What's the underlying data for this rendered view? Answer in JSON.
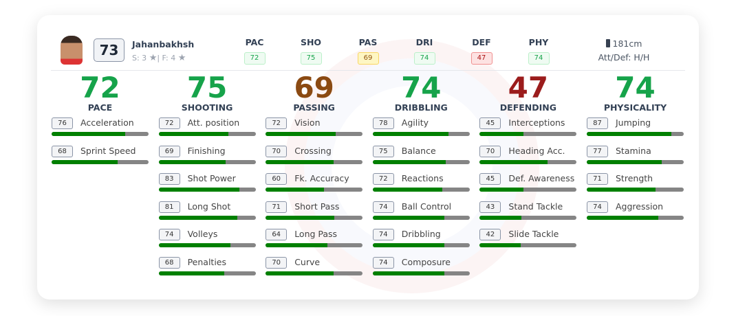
{
  "player": {
    "name": "Jahanbakhsh",
    "overall": "73",
    "skills": "S: 3",
    "weak_foot": "F: 4",
    "height": "181cm",
    "work_rate": "Att/Def: H/H"
  },
  "header_stats": [
    {
      "label": "PAC",
      "value": "72",
      "tone": "g"
    },
    {
      "label": "SHO",
      "value": "75",
      "tone": "g"
    },
    {
      "label": "PAS",
      "value": "69",
      "tone": "y"
    },
    {
      "label": "DRI",
      "value": "74",
      "tone": "g"
    },
    {
      "label": "DEF",
      "value": "47",
      "tone": "r"
    },
    {
      "label": "PHY",
      "value": "74",
      "tone": "g"
    }
  ],
  "colors": {
    "green": "#16a34a",
    "brown": "#8b4a12",
    "red": "#9b1c1c",
    "bar_fill": "#008000",
    "bar_track": "#858585"
  },
  "categories": [
    {
      "name": "PACE",
      "value": "72",
      "color": "#16a34a",
      "attrs": [
        {
          "name": "Acceleration",
          "value": 76
        },
        {
          "name": "Sprint Speed",
          "value": 68
        }
      ]
    },
    {
      "name": "SHOOTING",
      "value": "75",
      "color": "#16a34a",
      "attrs": [
        {
          "name": "Att. position",
          "value": 72
        },
        {
          "name": "Finishing",
          "value": 69
        },
        {
          "name": "Shot Power",
          "value": 83
        },
        {
          "name": "Long Shot",
          "value": 81
        },
        {
          "name": "Volleys",
          "value": 74
        },
        {
          "name": "Penalties",
          "value": 68
        }
      ]
    },
    {
      "name": "PASSING",
      "value": "69",
      "color": "#8b4a12",
      "attrs": [
        {
          "name": "Vision",
          "value": 72
        },
        {
          "name": "Crossing",
          "value": 70
        },
        {
          "name": "Fk. Accuracy",
          "value": 60
        },
        {
          "name": "Short Pass",
          "value": 71
        },
        {
          "name": "Long Pass",
          "value": 64
        },
        {
          "name": "Curve",
          "value": 70
        }
      ]
    },
    {
      "name": "DRIBBLING",
      "value": "74",
      "color": "#16a34a",
      "attrs": [
        {
          "name": "Agility",
          "value": 78
        },
        {
          "name": "Balance",
          "value": 75
        },
        {
          "name": "Reactions",
          "value": 72
        },
        {
          "name": "Ball Control",
          "value": 74
        },
        {
          "name": "Dribbling",
          "value": 74
        },
        {
          "name": "Composure",
          "value": 74
        }
      ]
    },
    {
      "name": "DEFENDING",
      "value": "47",
      "color": "#9b1c1c",
      "attrs": [
        {
          "name": "Interceptions",
          "value": 45
        },
        {
          "name": "Heading Acc.",
          "value": 70
        },
        {
          "name": "Def. Awareness",
          "value": 45
        },
        {
          "name": "Stand Tackle",
          "value": 43
        },
        {
          "name": "Slide Tackle",
          "value": 42
        }
      ]
    },
    {
      "name": "PHYSICALITY",
      "value": "74",
      "color": "#16a34a",
      "attrs": [
        {
          "name": "Jumping",
          "value": 87
        },
        {
          "name": "Stamina",
          "value": 77
        },
        {
          "name": "Strength",
          "value": 71
        },
        {
          "name": "Aggression",
          "value": 74
        }
      ]
    }
  ]
}
